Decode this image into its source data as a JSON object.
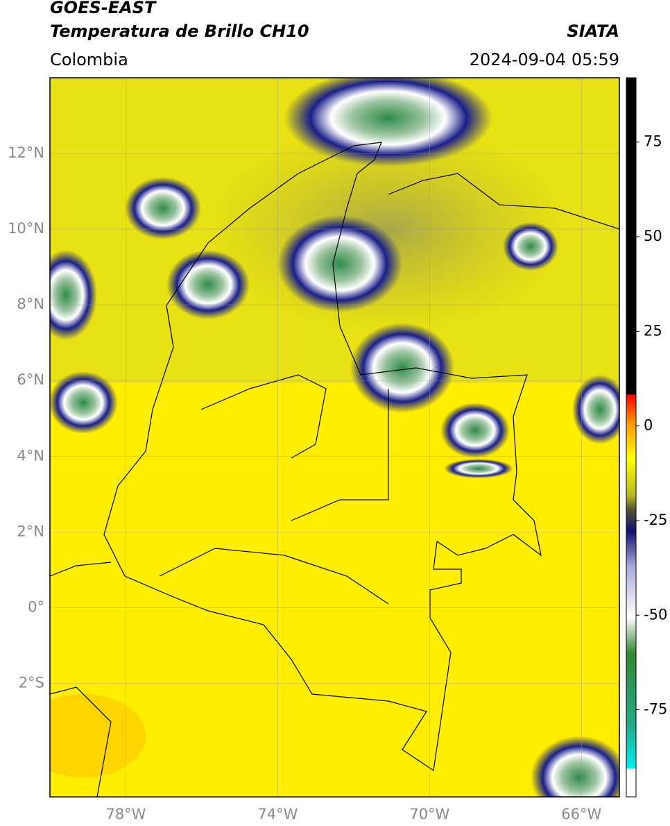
{
  "header": {
    "title": "GOES-EAST",
    "subtitle": "Temperatura de Brillo CH10",
    "region": "Colombia",
    "source": "SIATA",
    "datetime": "2024-09-04 05:59"
  },
  "map": {
    "latlim": [
      -5,
      14
    ],
    "lonlim": [
      -80,
      -65
    ],
    "lat_ticks": [
      {
        "value": 12,
        "label": "12°N"
      },
      {
        "value": 10,
        "label": "10°N"
      },
      {
        "value": 8,
        "label": "8°N"
      },
      {
        "value": 6,
        "label": "6°N"
      },
      {
        "value": 4,
        "label": "4°N"
      },
      {
        "value": 2,
        "label": "2°N"
      },
      {
        "value": 0,
        "label": "0°"
      },
      {
        "value": -2,
        "label": "2°S"
      }
    ],
    "lon_ticks": [
      {
        "value": -78,
        "label": "78°W"
      },
      {
        "value": -74,
        "label": "74°W"
      },
      {
        "value": -70,
        "label": "70°W"
      },
      {
        "value": -66,
        "label": "66°W"
      }
    ]
  },
  "colorbar": {
    "lim": [
      -98,
      92
    ],
    "ticks": [
      75,
      50,
      25,
      0,
      -25,
      -50,
      -75
    ]
  }
}
